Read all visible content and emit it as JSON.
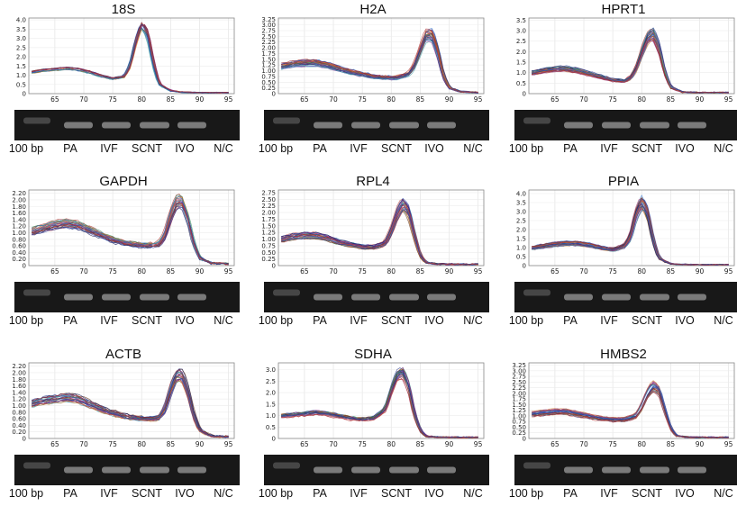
{
  "lane_labels": [
    "100 bp",
    "PA",
    "IVF",
    "SCNT",
    "IVO",
    "N/C"
  ],
  "chart_data": [
    {
      "type": "line",
      "title": "18S",
      "x_ticks": [
        65,
        70,
        75,
        80,
        85,
        90,
        95
      ],
      "y_ticks": [
        0,
        0.5,
        1.0,
        1.5,
        2.0,
        2.5,
        3.0,
        3.5,
        4.0
      ],
      "ylim": [
        0,
        4.1
      ],
      "xlim": [
        60.5,
        96
      ],
      "series": [
        {
          "x": [
            61,
            63,
            65,
            67,
            69,
            71,
            73,
            75,
            77,
            78,
            79,
            80,
            81,
            82,
            83,
            85,
            87,
            90,
            95
          ],
          "y": [
            1.15,
            1.25,
            1.3,
            1.35,
            1.3,
            1.15,
            0.95,
            0.8,
            0.9,
            1.5,
            2.8,
            3.7,
            3.2,
            1.6,
            0.5,
            0.15,
            0.08,
            0.05,
            0.05
          ]
        }
      ]
    },
    {
      "type": "line",
      "title": "H2A",
      "x_ticks": [
        65,
        70,
        75,
        80,
        85,
        90,
        95
      ],
      "y_ticks": [
        0,
        0.25,
        0.5,
        0.75,
        1.0,
        1.25,
        1.5,
        1.75,
        2.0,
        2.25,
        2.5,
        2.75,
        3.0,
        3.25
      ],
      "ylim": [
        0,
        3.3
      ],
      "xlim": [
        60.5,
        96
      ],
      "series": [
        {
          "x": [
            61,
            63,
            65,
            67,
            69,
            71,
            73,
            75,
            77,
            79,
            81,
            83,
            84,
            85,
            86,
            87,
            88,
            89,
            90,
            92,
            95
          ],
          "y": [
            1.2,
            1.3,
            1.35,
            1.35,
            1.25,
            1.1,
            0.95,
            0.85,
            0.75,
            0.7,
            0.7,
            0.85,
            1.2,
            1.9,
            2.55,
            2.6,
            1.9,
            0.8,
            0.25,
            0.08,
            0.05
          ]
        }
      ]
    },
    {
      "type": "line",
      "title": "HPRT1",
      "x_ticks": [
        65,
        70,
        75,
        80,
        85,
        90,
        95
      ],
      "y_ticks": [
        0,
        0.5,
        1.0,
        1.5,
        2.0,
        2.5,
        3.0,
        3.5
      ],
      "ylim": [
        0,
        3.6
      ],
      "xlim": [
        60.5,
        96
      ],
      "series": [
        {
          "x": [
            61,
            63,
            65,
            67,
            69,
            71,
            73,
            75,
            77,
            78,
            79,
            80,
            81,
            82,
            83,
            84,
            85,
            87,
            90,
            95
          ],
          "y": [
            1.0,
            1.1,
            1.2,
            1.2,
            1.1,
            0.95,
            0.8,
            0.65,
            0.6,
            0.75,
            1.2,
            2.0,
            2.7,
            2.9,
            2.2,
            1.0,
            0.3,
            0.08,
            0.05,
            0.05
          ]
        }
      ]
    },
    {
      "type": "line",
      "title": "GAPDH",
      "x_ticks": [
        65,
        70,
        75,
        80,
        85,
        90,
        95
      ],
      "y_ticks": [
        0,
        0.2,
        0.4,
        0.6,
        0.8,
        1.0,
        1.2,
        1.4,
        1.6,
        1.8,
        2.0,
        2.2
      ],
      "ylim": [
        0,
        2.3
      ],
      "xlim": [
        60.5,
        96
      ],
      "series": [
        {
          "x": [
            61,
            63,
            65,
            67,
            69,
            71,
            73,
            75,
            77,
            79,
            81,
            83,
            84,
            85,
            86,
            87,
            88,
            89,
            90,
            92,
            95
          ],
          "y": [
            1.05,
            1.15,
            1.25,
            1.3,
            1.25,
            1.1,
            0.95,
            0.8,
            0.7,
            0.65,
            0.62,
            0.65,
            0.9,
            1.5,
            1.95,
            2.0,
            1.5,
            0.7,
            0.25,
            0.08,
            0.05
          ]
        }
      ]
    },
    {
      "type": "line",
      "title": "RPL4",
      "x_ticks": [
        65,
        70,
        75,
        80,
        85,
        90,
        95
      ],
      "y_ticks": [
        0,
        0.25,
        0.5,
        0.75,
        1.0,
        1.25,
        1.5,
        1.75,
        2.0,
        2.25,
        2.5,
        2.75
      ],
      "ylim": [
        0,
        2.85
      ],
      "xlim": [
        60.5,
        96
      ],
      "series": [
        {
          "x": [
            61,
            63,
            65,
            67,
            69,
            71,
            73,
            75,
            77,
            79,
            80,
            81,
            82,
            83,
            84,
            85,
            86,
            88,
            90,
            95
          ],
          "y": [
            1.0,
            1.1,
            1.15,
            1.15,
            1.05,
            0.9,
            0.8,
            0.72,
            0.7,
            0.85,
            1.3,
            1.95,
            2.35,
            2.1,
            1.2,
            0.4,
            0.12,
            0.06,
            0.05,
            0.05
          ]
        }
      ]
    },
    {
      "type": "line",
      "title": "PPIA",
      "x_ticks": [
        65,
        70,
        75,
        80,
        85,
        90,
        95
      ],
      "y_ticks": [
        0,
        0.5,
        1.0,
        1.5,
        2.0,
        2.5,
        3.0,
        3.5,
        4.0
      ],
      "ylim": [
        0,
        4.2
      ],
      "xlim": [
        60.5,
        96
      ],
      "series": [
        {
          "x": [
            61,
            63,
            65,
            67,
            69,
            71,
            73,
            75,
            77,
            78,
            79,
            80,
            81,
            82,
            83,
            85,
            87,
            90,
            95
          ],
          "y": [
            1.0,
            1.1,
            1.2,
            1.25,
            1.25,
            1.15,
            1.0,
            0.9,
            1.1,
            1.6,
            2.9,
            3.6,
            3.0,
            1.4,
            0.4,
            0.1,
            0.06,
            0.05,
            0.05
          ]
        }
      ]
    },
    {
      "type": "line",
      "title": "ACTB",
      "x_ticks": [
        65,
        70,
        75,
        80,
        85,
        90,
        95
      ],
      "y_ticks": [
        0,
        0.2,
        0.4,
        0.6,
        0.8,
        1.0,
        1.2,
        1.4,
        1.6,
        1.8,
        2.0,
        2.2
      ],
      "ylim": [
        0,
        2.3
      ],
      "xlim": [
        60.5,
        96
      ],
      "series": [
        {
          "x": [
            61,
            63,
            65,
            67,
            69,
            71,
            73,
            75,
            77,
            79,
            81,
            83,
            84,
            85,
            86,
            87,
            88,
            89,
            90,
            92,
            95
          ],
          "y": [
            1.05,
            1.15,
            1.2,
            1.25,
            1.2,
            1.05,
            0.9,
            0.78,
            0.68,
            0.62,
            0.6,
            0.62,
            0.85,
            1.45,
            1.9,
            1.95,
            1.45,
            0.7,
            0.25,
            0.08,
            0.05
          ]
        }
      ]
    },
    {
      "type": "line",
      "title": "SDHA",
      "x_ticks": [
        65,
        70,
        75,
        80,
        85,
        90,
        95
      ],
      "y_ticks": [
        0,
        0.5,
        1.0,
        1.5,
        2.0,
        2.5,
        3.0
      ],
      "ylim": [
        0,
        3.3
      ],
      "xlim": [
        60.5,
        96
      ],
      "series": [
        {
          "x": [
            61,
            63,
            65,
            67,
            69,
            71,
            73,
            75,
            77,
            79,
            80,
            81,
            82,
            83,
            84,
            85,
            86,
            88,
            90,
            95
          ],
          "y": [
            1.0,
            1.05,
            1.1,
            1.15,
            1.1,
            1.0,
            0.9,
            0.85,
            0.9,
            1.3,
            2.1,
            2.8,
            2.95,
            2.3,
            1.1,
            0.35,
            0.1,
            0.06,
            0.05,
            0.05
          ]
        }
      ]
    },
    {
      "type": "line",
      "title": "HMBS2",
      "x_ticks": [
        65,
        70,
        75,
        80,
        85,
        90,
        95
      ],
      "y_ticks": [
        0,
        0.25,
        0.5,
        0.75,
        1.0,
        1.25,
        1.5,
        1.75,
        2.0,
        2.25,
        2.5,
        2.75,
        3.0,
        3.25
      ],
      "ylim": [
        0,
        3.35
      ],
      "xlim": [
        60.5,
        96
      ],
      "series": [
        {
          "x": [
            61,
            63,
            65,
            67,
            69,
            71,
            73,
            75,
            77,
            79,
            80,
            81,
            82,
            83,
            84,
            85,
            86,
            88,
            90,
            95
          ],
          "y": [
            1.1,
            1.15,
            1.2,
            1.2,
            1.1,
            1.0,
            0.9,
            0.85,
            0.85,
            1.0,
            1.4,
            2.0,
            2.35,
            2.2,
            1.3,
            0.45,
            0.12,
            0.06,
            0.05,
            0.05
          ]
        }
      ]
    }
  ]
}
